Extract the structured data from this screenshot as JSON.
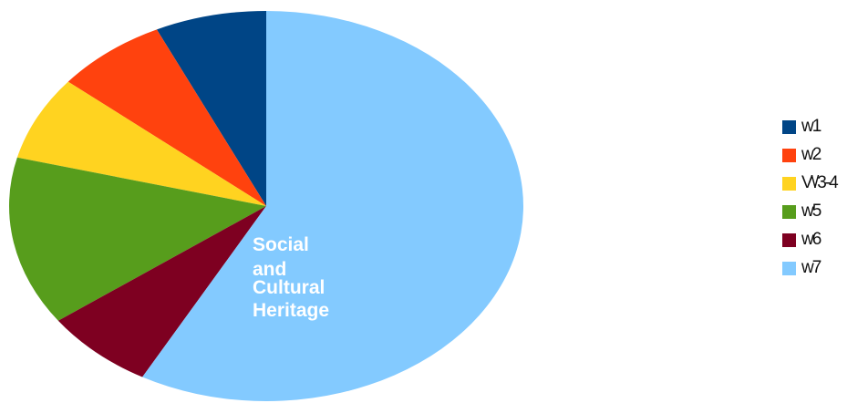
{
  "chart_data": {
    "type": "pie",
    "title": "",
    "start": "top",
    "direction": "counterclockwise",
    "slices": [
      {
        "label": "w1",
        "value": 7,
        "color": "#004586"
      },
      {
        "label": "w2",
        "value": 7,
        "color": "#FF420E"
      },
      {
        "label": "V\\/3-4",
        "value": 7,
        "color": "#FFD320"
      },
      {
        "label": "w5",
        "value": 14,
        "color": "#579D1C"
      },
      {
        "label": "w6",
        "value": 7,
        "color": "#7E0021"
      },
      {
        "label": "w7",
        "value": 58,
        "color": "#83CAFF"
      }
    ],
    "annotations": [
      "Social",
      "and",
      "Cultural",
      "Heritage"
    ],
    "legend_position": "right"
  }
}
